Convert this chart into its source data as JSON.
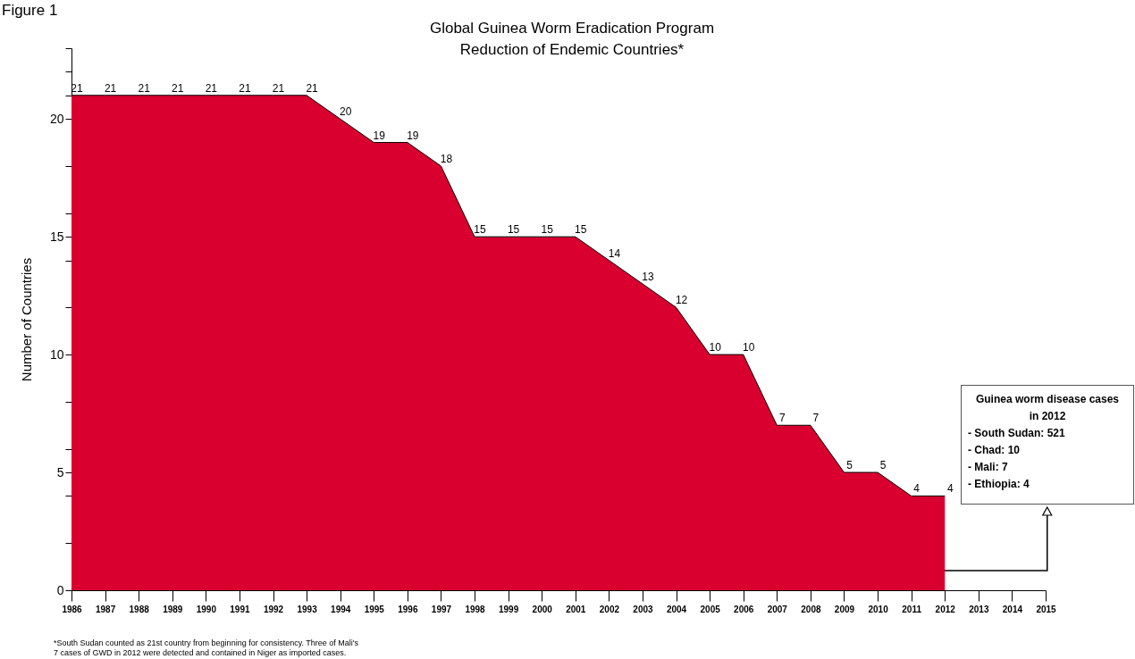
{
  "chart_data": {
    "type": "area",
    "title": "Global Guinea Worm Eradication Program",
    "subtitle": "Reduction of Endemic Countries*",
    "ylabel": "Number of Countries",
    "x": [
      1986,
      1987,
      1988,
      1989,
      1990,
      1991,
      1992,
      1993,
      1994,
      1995,
      1996,
      1997,
      1998,
      1999,
      2000,
      2001,
      2002,
      2003,
      2004,
      2005,
      2006,
      2007,
      2008,
      2009,
      2010,
      2011,
      2012
    ],
    "series": [
      {
        "color": "#d9002f",
        "values": [
          21,
          21,
          21,
          21,
          21,
          21,
          21,
          21,
          20,
          19,
          19,
          18,
          15,
          15,
          15,
          15,
          14,
          13,
          12,
          10,
          10,
          7,
          7,
          5,
          5,
          4,
          4
        ]
      }
    ],
    "xlim": [
      1986,
      2015
    ],
    "xticks": [
      1986,
      1987,
      1988,
      1989,
      1990,
      1991,
      1992,
      1993,
      1994,
      1995,
      1996,
      1997,
      1998,
      1999,
      2000,
      2001,
      2002,
      2003,
      2004,
      2005,
      2006,
      2007,
      2008,
      2009,
      2010,
      2011,
      2012,
      2013,
      2014,
      2015
    ],
    "ylim": [
      0,
      23
    ],
    "yticks": [
      0,
      {
        "value": 2,
        "label": null
      },
      {
        "value": 4,
        "label": null
      },
      {
        "value": 6,
        "label": null
      },
      {
        "value": 8,
        "label": null
      },
      10,
      {
        "value": 12,
        "label": null
      },
      {
        "value": 14,
        "label": null
      },
      15,
      {
        "value": 16,
        "label": null
      },
      {
        "value": 18,
        "label": null
      },
      20,
      {
        "value": 21,
        "label": null
      },
      {
        "value": 22,
        "label": null
      },
      {
        "value": 23,
        "label": null
      },
      5
    ],
    "data_labels": true,
    "grid": false,
    "annotations": [
      "Figure 1",
      "Guinea worm disease cases in 2012",
      "- South Sudan: 521",
      "- Chad: 10",
      "- Mali: 7",
      "- Ethiopia: 4",
      "*South Sudan counted as 21st country from beginning for consistency. Three of Mali's 7 cases of GWD in 2012 were detected and contained in Niger as imported cases."
    ]
  }
}
